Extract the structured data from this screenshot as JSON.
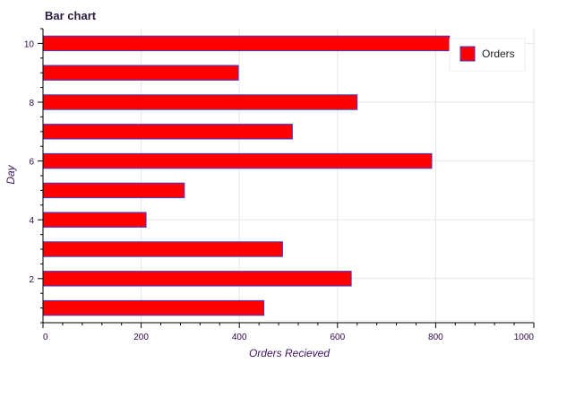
{
  "chart_data": {
    "type": "bar",
    "orientation": "horizontal",
    "title": "Bar chart",
    "xlabel": "Orders Recieved",
    "ylabel": "Day",
    "categories": [
      1,
      2,
      3,
      4,
      5,
      6,
      7,
      8,
      9,
      10
    ],
    "series": [
      {
        "name": "Orders",
        "values": [
          450,
          628,
          488,
          210,
          288,
          792,
          508,
          640,
          398,
          828
        ]
      }
    ],
    "xlim": [
      0,
      1000
    ],
    "ylim": [
      0.5,
      10.5
    ],
    "x_ticks": [
      0,
      200,
      400,
      600,
      800,
      1000
    ],
    "y_ticks": [
      2,
      4,
      6,
      8,
      10
    ],
    "grid": true,
    "legend_position": "top-right",
    "bar_fill": "#ff0000",
    "bar_stroke": "#3b3bd6",
    "axis_color": "#000000",
    "grid_color": "#e6e6e6"
  }
}
